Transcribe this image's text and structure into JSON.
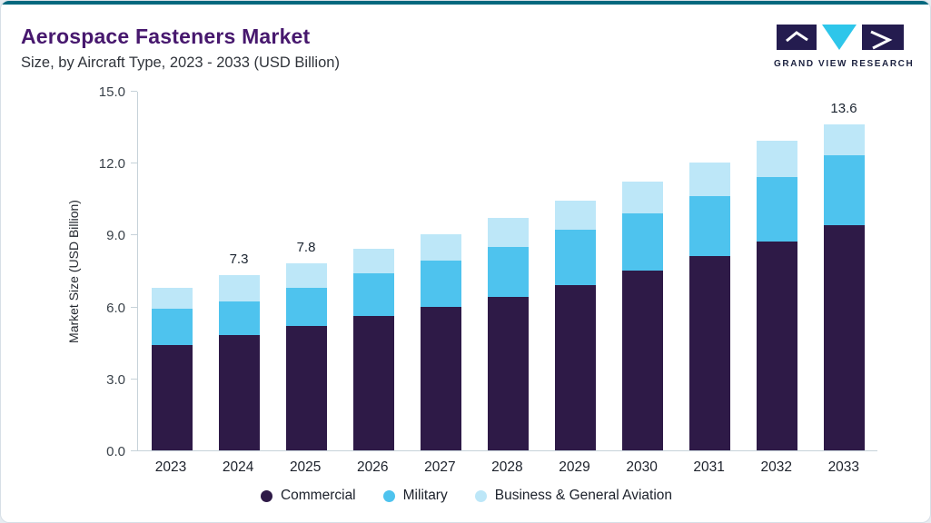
{
  "page": {
    "accent_top_border": "#03687e",
    "card_background": "#ffffff",
    "outer_background": "#e6ecf1"
  },
  "header": {
    "title": "Aerospace Fasteners Market",
    "subtitle": "Size, by Aircraft Type, 2023 - 2033 (USD Billion)",
    "title_color": "#47186e",
    "logo_text": "GRAND VIEW RESEARCH",
    "logo_colors": {
      "dark": "#241c4f",
      "cyan": "#2ec6ea"
    }
  },
  "chart_data": {
    "type": "bar",
    "stacked": true,
    "title": "Aerospace Fasteners Market Size, by Aircraft Type, 2023 - 2033 (USD Billion)",
    "categories": [
      "2023",
      "2024",
      "2025",
      "2026",
      "2027",
      "2028",
      "2029",
      "2030",
      "2031",
      "2032",
      "2033"
    ],
    "series": [
      {
        "name": "Commercial",
        "color": "#2e1a47",
        "values": [
          4.4,
          4.8,
          5.2,
          5.6,
          6.0,
          6.4,
          6.9,
          7.5,
          8.1,
          8.7,
          9.4
        ]
      },
      {
        "name": "Military",
        "color": "#4ec3ee",
        "values": [
          1.5,
          1.4,
          1.6,
          1.8,
          1.9,
          2.1,
          2.3,
          2.4,
          2.5,
          2.7,
          2.9
        ]
      },
      {
        "name": "Business & General Aviation",
        "color": "#bde7f8",
        "values": [
          0.9,
          1.1,
          1.0,
          1.0,
          1.1,
          1.2,
          1.2,
          1.3,
          1.4,
          1.5,
          1.3
        ]
      }
    ],
    "totals": [
      6.8,
      7.3,
      7.8,
      8.4,
      9.0,
      9.7,
      10.4,
      11.2,
      12.0,
      12.9,
      13.6
    ],
    "bar_labels": [
      "",
      "7.3",
      "7.8",
      "",
      "",
      "",
      "",
      "",
      "",
      "",
      "13.6"
    ],
    "ylabel": "Market Size (USD Billion)",
    "ylim": [
      0,
      15
    ],
    "yticks": [
      "0.0",
      "3.0",
      "6.0",
      "9.0",
      "12.0",
      "15.0"
    ],
    "grid": false,
    "legend_position": "bottom"
  }
}
